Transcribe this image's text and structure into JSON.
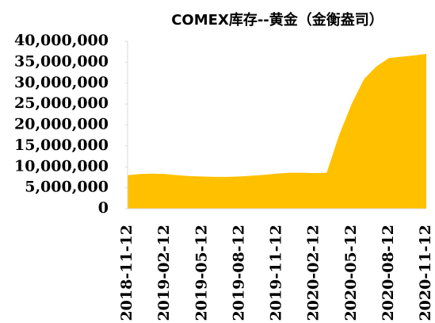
{
  "chart_data": {
    "type": "area",
    "title": "COMEX库存--黄金（金衡盎司）",
    "categories": [
      "2018-11-12",
      null,
      null,
      "2019-02-12",
      null,
      null,
      "2019-05-12",
      null,
      null,
      "2019-08-12",
      null,
      null,
      "2019-11-12",
      null,
      null,
      "2020-02-12",
      null,
      null,
      "2020-05-12",
      null,
      null,
      "2020-08-12",
      null,
      null,
      "2020-11-12"
    ],
    "series": [
      {
        "name": "黄金",
        "color": "#FFC000",
        "values": [
          8000000,
          8300000,
          8400000,
          8300000,
          8000000,
          7800000,
          7700000,
          7600000,
          7600000,
          7700000,
          7900000,
          8100000,
          8400000,
          8600000,
          8600000,
          8500000,
          8600000,
          17600000,
          25000000,
          31000000,
          34000000,
          36000000,
          36300000,
          36600000,
          37000000
        ]
      }
    ],
    "ylim": [
      0,
      40000000
    ],
    "yticks": [
      0,
      {
        "value": 5000000,
        "label": "5,000,000"
      },
      {
        "value": 10000000,
        "label": "10,000,000"
      },
      {
        "value": 15000000,
        "label": "15,000,000"
      },
      {
        "value": 20000000,
        "label": "20,000,000"
      },
      {
        "value": 25000000,
        "label": "25,000,000"
      },
      {
        "value": 30000000,
        "label": "30,000,000"
      },
      {
        "value": 35000000,
        "label": "35,000,000"
      },
      {
        "value": 40000000,
        "label": "40,000,000"
      }
    ],
    "grid": false
  }
}
